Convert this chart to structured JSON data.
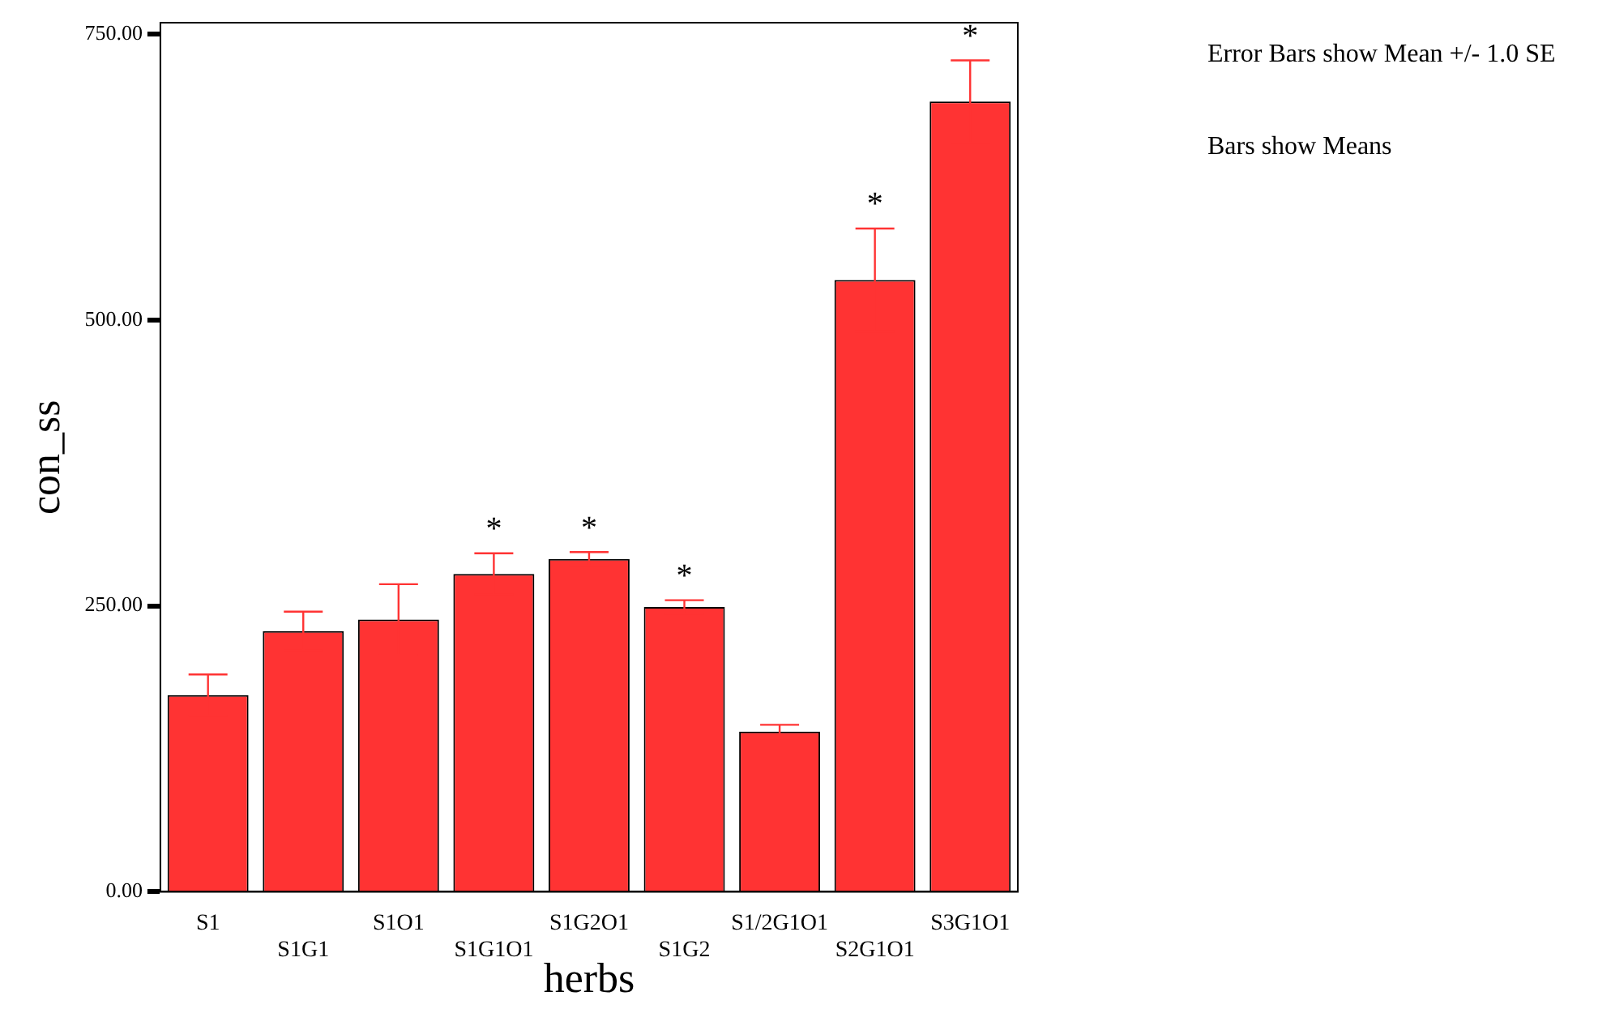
{
  "chart_data": {
    "type": "bar",
    "xlabel": "herbs",
    "ylabel": "con_ss",
    "categories": [
      "S1",
      "S1G1",
      "S1O1",
      "S1G1O1",
      "S1G2O1",
      "S1G2",
      "S1/2G1O1",
      "S2G1O1",
      "S3G1O1"
    ],
    "values": [
      172,
      228,
      238,
      278,
      291,
      249,
      140,
      535,
      691
    ],
    "errors": [
      18,
      17,
      31,
      18,
      6,
      6,
      6,
      45,
      36
    ],
    "color": "#ff3333",
    "ylim": [
      0,
      760
    ],
    "yticks": [
      {
        "value": 0,
        "label": "0.00"
      },
      {
        "value": 250,
        "label": "250.00"
      },
      {
        "value": 500,
        "label": "500.00"
      },
      {
        "value": 750,
        "label": "750.00"
      }
    ],
    "grid": false,
    "legend": false,
    "annotations": [
      {
        "text": "*",
        "x": "S1G1O1",
        "y": 296
      },
      {
        "text": "*",
        "x": "S1G2O1",
        "y": 297
      },
      {
        "text": "*",
        "x": "S1G2",
        "y": 255
      },
      {
        "text": "*",
        "x": "S2G1O1",
        "y": 580
      },
      {
        "text": "*",
        "x": "S3G1O1",
        "y": 727
      },
      "Error Bars show Mean +/- 1.0 SE",
      "Bars show Means"
    ]
  }
}
